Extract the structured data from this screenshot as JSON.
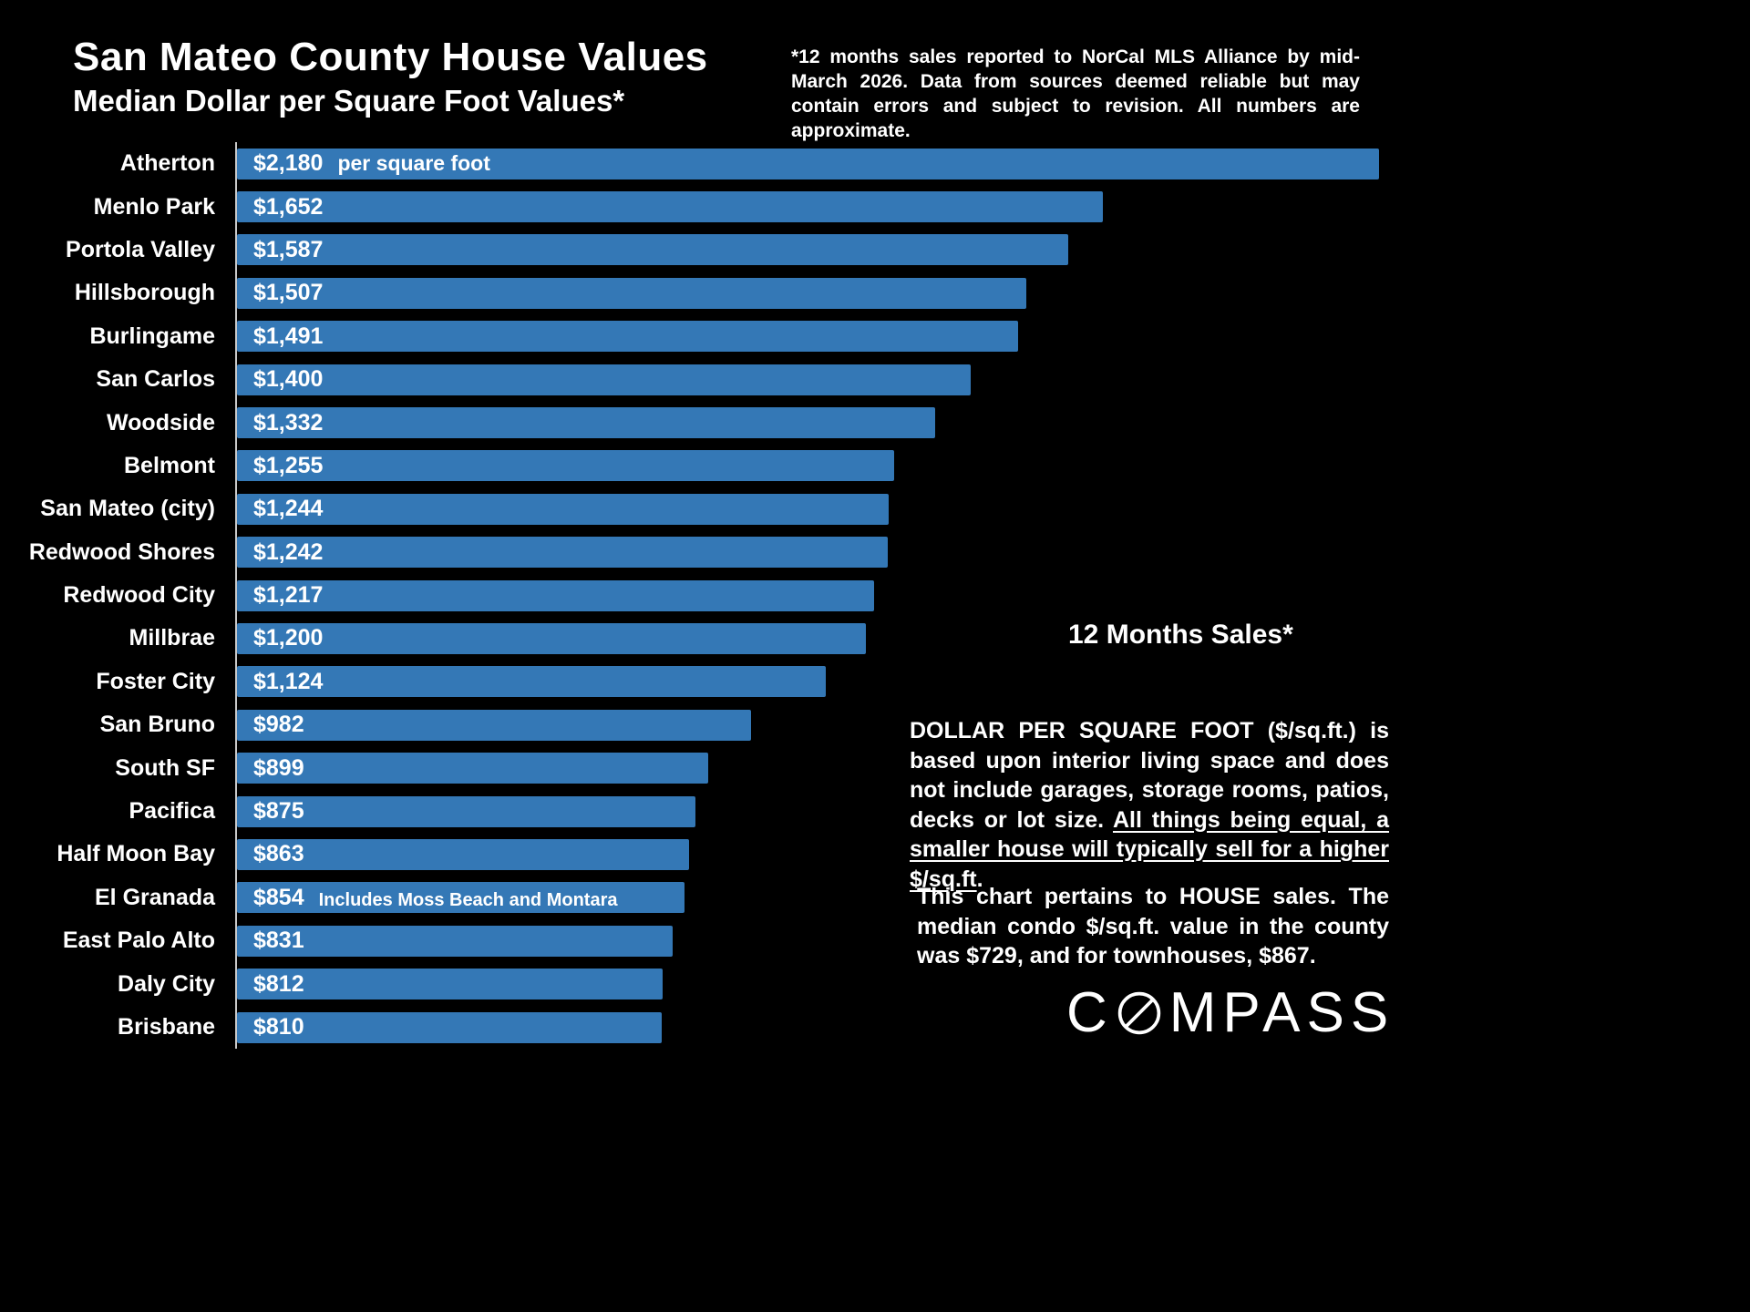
{
  "header": {
    "title": "San Mateo County House Values",
    "subtitle": "Median Dollar per Square Foot Values*",
    "disclaimer": "*12 months sales reported to NorCal MLS Alliance by mid-March 2026. Data from sources deemed reliable but may contain errors and subject to revision. All numbers are approximate."
  },
  "chart_data": {
    "type": "bar",
    "orientation": "horizontal",
    "title": "San Mateo County House Values",
    "subtitle": "Median Dollar per Square Foot Values*",
    "xlabel": "",
    "ylabel": "",
    "xlim": [
      0,
      2180
    ],
    "scale_max": 2180,
    "grid": false,
    "legend": "none",
    "bar_color": "#3478b6",
    "categories": [
      "Atherton",
      "Menlo Park",
      "Portola Valley",
      "Hillsborough",
      "Burlingame",
      "San Carlos",
      "Woodside",
      "Belmont",
      "San Mateo (city)",
      "Redwood Shores",
      "Redwood City",
      "Millbrae",
      "Foster City",
      "San Bruno",
      "South SF",
      "Pacifica",
      "Half Moon Bay",
      "El Granada",
      "East Palo Alto",
      "Daly City",
      "Brisbane"
    ],
    "values": [
      2180,
      1652,
      1587,
      1507,
      1491,
      1400,
      1332,
      1255,
      1244,
      1242,
      1217,
      1200,
      1124,
      982,
      899,
      875,
      863,
      854,
      831,
      812,
      810
    ],
    "value_labels": [
      "$2,180",
      "$1,652",
      "$1,587",
      "$1,507",
      "$1,491",
      "$1,400",
      "$1,332",
      "$1,255",
      "$1,244",
      "$1,242",
      "$1,217",
      "$1,200",
      "$1,124",
      "$982",
      "$899",
      "$875",
      "$863",
      "$854",
      "$831",
      "$812",
      "$810"
    ],
    "first_bar_suffix": "per square foot",
    "annotations": [
      {
        "category": "El Granada",
        "text": "Includes Moss Beach and Montara"
      }
    ]
  },
  "sidebar": {
    "sales_heading": "12 Months Sales*",
    "para1_part1": "DOLLAR PER SQUARE FOOT ($/sq.ft.) is based upon interior living space and does not include garages, storage rooms, patios, decks or lot size. ",
    "para1_underline": "All things being equal, a smaller house will typically sell for a higher $/sq.ft",
    "para1_period": ".",
    "para2": "This chart pertains to HOUSE sales. The median condo $/sq.ft. value in the county was $729, and for townhouses, $867."
  },
  "logo": {
    "left": "C",
    "right": "MPASS"
  }
}
